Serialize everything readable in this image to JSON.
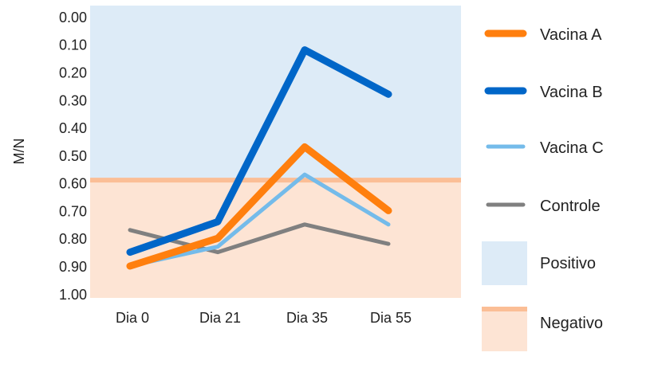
{
  "chart_data": {
    "type": "line",
    "title": "",
    "xlabel": "",
    "ylabel": "M/N",
    "categories": [
      "Dia 0",
      "Dia 21",
      "Dia 35",
      "Dia 55"
    ],
    "y_ticks": [
      "0.00",
      "0.10",
      "0.20",
      "0.30",
      "0.40",
      "0.50",
      "0.60",
      "0.70",
      "0.80",
      "0.90",
      "1.00"
    ],
    "ylim": [
      -0.04,
      1.015
    ],
    "y_inverted": true,
    "grid": false,
    "legend_position": "right",
    "threshold": 0.59,
    "series": [
      {
        "name": "Vacina A",
        "color": "#FF7F0E",
        "values": [
          0.9,
          0.8,
          0.47,
          0.7
        ]
      },
      {
        "name": "Vacina B",
        "color": "#0066C8",
        "values": [
          0.85,
          0.74,
          0.12,
          0.28
        ]
      },
      {
        "name": "Vacina C",
        "color": "#74BBEA",
        "values": [
          0.9,
          0.83,
          0.57,
          0.75
        ]
      },
      {
        "name": "Controle",
        "color": "#808080",
        "values": [
          0.77,
          0.85,
          0.75,
          0.82
        ]
      }
    ],
    "regions": [
      {
        "name": "Positivo",
        "color": "#DDEBF7"
      },
      {
        "name": "Negativo",
        "color": "#FDE4D4",
        "line_color": "#FBBE96"
      }
    ]
  }
}
